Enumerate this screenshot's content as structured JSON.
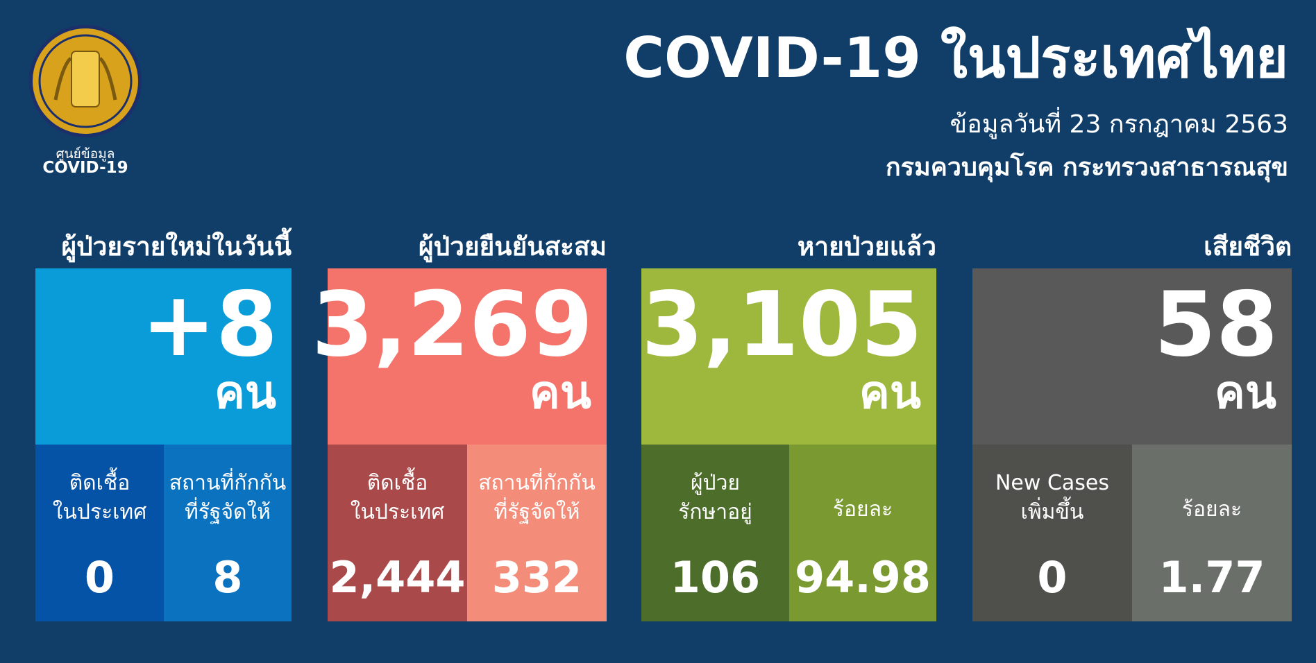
{
  "header": {
    "logo_caption": [
      "ศูนย์ข้อมูล",
      "COVID-19"
    ],
    "title": "COVID-19 ในประเทศไทย",
    "date": "ข้อมูลวันที่ 23 กรกฎาคม 2563",
    "department": "กรมควบคุมโรค กระทรวงสาธารณสุข"
  },
  "cards": [
    {
      "heading": "ผู้ป่วยรายใหม่ในวันนี้",
      "value": "+8",
      "unit": "คน",
      "details": [
        {
          "label": [
            "ติดเชื้อ",
            "ในประเทศ"
          ],
          "value": "0"
        },
        {
          "label": [
            "สถานที่กักกัน",
            "ที่รัฐจัดให้"
          ],
          "value": "8"
        }
      ]
    },
    {
      "heading": "ผู้ป่วยยืนยันสะสม",
      "value": "3,269",
      "unit": "คน",
      "details": [
        {
          "label": [
            "ติดเชื้อ",
            "ในประเทศ"
          ],
          "value": "2,444"
        },
        {
          "label": [
            "สถานที่กักกัน",
            "ที่รัฐจัดให้"
          ],
          "value": "332"
        }
      ]
    },
    {
      "heading": "หายป่วยแล้ว",
      "value": "3,105",
      "unit": "คน",
      "details": [
        {
          "label": [
            "ผู้ป่วย",
            "รักษาอยู่"
          ],
          "value": "106"
        },
        {
          "label": [
            "ร้อยละ"
          ],
          "value": "94.98"
        }
      ]
    },
    {
      "heading": "เสียชีวิต",
      "value": "58",
      "unit": "คน",
      "details": [
        {
          "label": [
            "New Cases",
            "เพิ่มขึ้น"
          ],
          "value": "0"
        },
        {
          "label": [
            "ร้อยละ"
          ],
          "value": "1.77"
        }
      ]
    }
  ]
}
